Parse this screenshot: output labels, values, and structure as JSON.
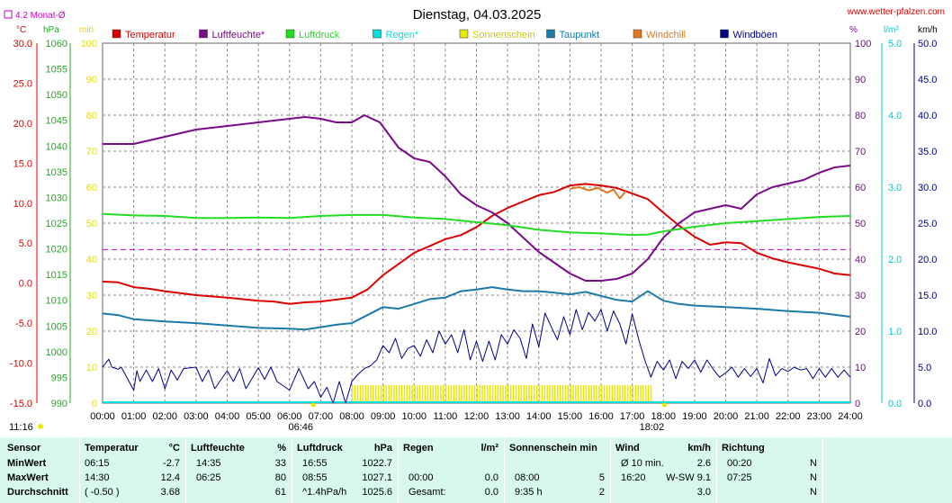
{
  "header": {
    "title": "Dienstag, 04.03.2025",
    "website": "www.wetter-pfalzen.com",
    "avg_label": "4.2 Monat-Ø"
  },
  "legend": [
    {
      "name": "Temperatur",
      "color": "#dd0000"
    },
    {
      "name": "Luftfeuchte*",
      "color": "#7a0a8a"
    },
    {
      "name": "Luftdruck",
      "color": "#22dd22"
    },
    {
      "name": "Regen*",
      "color": "#00e0e0"
    },
    {
      "name": "Sonnenschein",
      "color": "#e8e800"
    },
    {
      "name": "Taupunkt",
      "color": "#1a7aaa"
    },
    {
      "name": "Windchill",
      "color": "#e07a20"
    },
    {
      "name": "Windböen",
      "color": "#000088"
    }
  ],
  "axes": {
    "temp": {
      "unit": "°C",
      "ticks": [
        "30.0",
        "25.0",
        "20.0",
        "15.0",
        "10.0",
        "5.0",
        "0.0",
        "-5.0",
        "-10.0",
        "-15.0"
      ],
      "color": "#dd0000"
    },
    "pressure": {
      "unit": "hPa",
      "ticks": [
        "1060",
        "1055",
        "1050",
        "1045",
        "1040",
        "1035",
        "1030",
        "1025",
        "1020",
        "1015",
        "1010",
        "1005",
        "1000",
        "995",
        "990"
      ],
      "color": "#22aa22"
    },
    "sun": {
      "unit": "min",
      "ticks": [
        "100",
        "90",
        "80",
        "70",
        "60",
        "50",
        "40",
        "30",
        "20",
        "10",
        "0"
      ],
      "color": "#e8d800"
    },
    "humidity": {
      "unit": "%",
      "ticks": [
        "100",
        "90",
        "80",
        "70",
        "60",
        "50",
        "40",
        "30",
        "20",
        "10",
        "0"
      ],
      "color": "#7a0a8a"
    },
    "rain": {
      "unit": "l/m²",
      "ticks": [
        "5.0",
        "4.0",
        "3.0",
        "2.0",
        "1.0",
        "0.0"
      ],
      "color": "#00cccc"
    },
    "wind": {
      "unit": "km/h",
      "ticks": [
        "50.0",
        "45.0",
        "40.0",
        "35.0",
        "30.0",
        "25.0",
        "20.0",
        "15.0",
        "10.0",
        "5.0",
        "0.0"
      ],
      "color": "#000088"
    },
    "time_ticks": [
      "00:00",
      "01:00",
      "02:00",
      "03:00",
      "04:00",
      "05:00",
      "06:00",
      "07:00",
      "08:00",
      "09:00",
      "10:00",
      "11:00",
      "12:00",
      "13:00",
      "14:00",
      "15:00",
      "16:00",
      "17:00",
      "18:00",
      "19:00",
      "20:00",
      "21:00",
      "22:00",
      "23:00",
      "24:00"
    ]
  },
  "sun_events": {
    "sunrise": "06:46",
    "sunset": "18:02",
    "daylength": "11:16"
  },
  "chart_data": {
    "type": "line",
    "x_label": "",
    "x_range": [
      "00:00",
      "24:00"
    ],
    "temp_avg_line": 4.2,
    "series": [
      {
        "name": "Temperatur",
        "axis": "°C",
        "color": "#dd0000",
        "x": [
          0,
          0.5,
          1,
          1.5,
          2,
          3,
          4,
          5,
          5.5,
          6,
          6.5,
          7,
          8,
          8.5,
          9,
          10,
          11,
          11.5,
          12,
          12.5,
          13,
          13.5,
          14,
          14.5,
          15,
          15.5,
          16,
          16.5,
          17,
          17.5,
          18,
          18.5,
          19,
          19.5,
          20,
          20.5,
          21,
          21.5,
          22,
          23,
          23.5,
          24
        ],
        "y": [
          0.2,
          0.1,
          -0.5,
          -0.7,
          -1.0,
          -1.5,
          -1.8,
          -2.2,
          -2.3,
          -2.6,
          -2.4,
          -2.3,
          -1.8,
          -0.8,
          1.0,
          3.8,
          5.5,
          6.0,
          7.0,
          8.4,
          9.4,
          10.2,
          11.0,
          11.4,
          12.2,
          12.4,
          12.2,
          11.9,
          11.2,
          10.5,
          8.8,
          7.2,
          5.8,
          4.8,
          5.1,
          5.0,
          3.8,
          3.1,
          2.6,
          1.8,
          1.2,
          1.0
        ]
      },
      {
        "name": "Windchill",
        "axis": "°C",
        "color": "#e07a20",
        "x": [
          15.0,
          15.3,
          15.6,
          15.9,
          16.2,
          16.4,
          16.6,
          16.8
        ],
        "y": [
          11.8,
          12.0,
          11.6,
          11.9,
          11.3,
          11.7,
          10.6,
          11.5
        ]
      },
      {
        "name": "Taupunkt",
        "axis": "°C",
        "color": "#1a7aaa",
        "x": [
          0,
          0.5,
          1,
          2,
          3,
          4,
          5,
          6,
          6.5,
          7,
          7.5,
          8,
          8.5,
          9,
          9.5,
          10,
          10.5,
          11,
          11.5,
          12,
          12.5,
          13,
          13.5,
          14,
          14.5,
          15,
          15.5,
          16,
          16.5,
          17,
          17.5,
          18,
          18.5,
          19,
          20,
          21,
          22,
          23,
          24
        ],
        "y": [
          -3.8,
          -4.0,
          -4.5,
          -4.8,
          -5.0,
          -5.3,
          -5.6,
          -5.7,
          -5.8,
          -5.5,
          -5.2,
          -5.0,
          -4.0,
          -3.0,
          -3.2,
          -2.6,
          -2.0,
          -1.8,
          -1.0,
          -0.8,
          -0.5,
          -0.8,
          -1.0,
          -1.0,
          -1.2,
          -1.4,
          -1.1,
          -1.6,
          -2.1,
          -2.3,
          -1.0,
          -2.2,
          -2.6,
          -2.8,
          -3.0,
          -3.2,
          -3.5,
          -3.7,
          -4.2
        ]
      },
      {
        "name": "Luftfeuchte*",
        "axis": "%",
        "color": "#7a0a8a",
        "x": [
          0,
          1,
          2,
          3,
          4,
          5,
          5.5,
          6,
          6.5,
          7,
          7.5,
          8,
          8.4,
          8.9,
          9.5,
          10,
          10.5,
          11,
          11.5,
          12,
          12.5,
          13,
          13.5,
          14,
          14.5,
          15,
          15.5,
          16,
          16.5,
          17,
          17.5,
          18,
          18.5,
          19,
          19.5,
          20,
          20.5,
          21,
          21.5,
          22,
          22.5,
          23,
          23.5,
          24
        ],
        "y": [
          72,
          72,
          74,
          76,
          77,
          78,
          78.5,
          79,
          79.5,
          79,
          78,
          78,
          80,
          78,
          71,
          68,
          67,
          63,
          58,
          55,
          53,
          50,
          46,
          42,
          39,
          36,
          34,
          34,
          34.5,
          36,
          40,
          46,
          50,
          53,
          54,
          55,
          54,
          58,
          60,
          61,
          62,
          64,
          65.5,
          66
        ]
      },
      {
        "name": "Luftdruck",
        "axis": "hPa",
        "color": "#22dd22",
        "x": [
          0,
          1,
          2,
          3,
          4,
          5,
          6,
          7,
          8,
          9,
          10,
          11,
          12,
          13,
          14,
          15,
          16,
          17,
          17.5,
          18,
          19,
          20,
          21,
          22,
          23,
          24
        ],
        "y": [
          1026.8,
          1026.5,
          1026.4,
          1026.0,
          1026.0,
          1026.1,
          1026.0,
          1026.4,
          1026.6,
          1026.6,
          1026.1,
          1025.8,
          1025.2,
          1024.6,
          1023.7,
          1023.2,
          1023.0,
          1022.7,
          1022.8,
          1023.4,
          1024.3,
          1025.0,
          1025.4,
          1025.8,
          1026.2,
          1026.4
        ]
      },
      {
        "name": "Windböen",
        "axis": "km/h",
        "color": "#000088",
        "x": [
          0,
          0.2,
          0.3,
          0.5,
          0.6,
          1,
          1.1,
          1.2,
          1.4,
          1.6,
          1.8,
          2,
          2.2,
          2.4,
          2.6,
          3,
          3.2,
          3.4,
          3.6,
          4,
          4.2,
          4.4,
          4.6,
          5,
          5.2,
          5.4,
          5.6,
          6,
          6.3,
          6.6,
          6.8,
          7,
          7.2,
          7.4,
          7.6,
          7.8,
          8,
          8.2,
          8.4,
          8.6,
          8.8,
          9,
          9.2,
          9.4,
          9.6,
          9.8,
          10,
          10.2,
          10.4,
          10.6,
          10.8,
          11,
          11.2,
          11.4,
          11.6,
          11.8,
          12,
          12.2,
          12.4,
          12.6,
          12.8,
          13,
          13.2,
          13.4,
          13.6,
          13.8,
          14,
          14.2,
          14.4,
          14.6,
          14.8,
          15,
          15.2,
          15.4,
          15.6,
          15.8,
          16,
          16.2,
          16.4,
          16.6,
          16.8,
          17,
          17.2,
          17.4,
          17.6,
          17.8,
          18,
          18.2,
          18.4,
          18.6,
          18.8,
          19,
          19.2,
          19.4,
          19.6,
          19.8,
          20,
          20.2,
          20.4,
          20.6,
          20.8,
          21,
          21.2,
          21.4,
          21.6,
          21.8,
          22,
          22.2,
          22.4,
          22.6,
          22.8,
          23,
          23.2,
          23.4,
          23.6,
          23.8,
          24
        ],
        "y": [
          5.0,
          6.1,
          5.0,
          4.7,
          5.0,
          1.8,
          4.5,
          3.0,
          4.6,
          3.0,
          4.8,
          2.0,
          4.6,
          3.2,
          4.8,
          5.0,
          3.0,
          4.6,
          2.0,
          4.5,
          3.0,
          4.8,
          2.0,
          4.9,
          3.3,
          5.0,
          3.0,
          1.8,
          4.8,
          2.0,
          3.0,
          0.8,
          2.2,
          0.0,
          3.0,
          0.0,
          3.0,
          4.0,
          4.8,
          5.2,
          6.0,
          8.0,
          7.0,
          9.0,
          6.2,
          7.6,
          8.0,
          6.5,
          8.8,
          7.0,
          10.0,
          8.2,
          9.5,
          7.0,
          10.2,
          6.0,
          8.6,
          5.8,
          8.6,
          6.0,
          9.5,
          8.2,
          10.2,
          9.0,
          6.2,
          11.0,
          7.8,
          12.5,
          10.6,
          8.8,
          12.0,
          9.5,
          13.0,
          10.2,
          12.6,
          11.4,
          13.0,
          10.0,
          12.8,
          11.0,
          8.2,
          12.4,
          9.0,
          6.0,
          3.6,
          5.8,
          4.6,
          6.0,
          3.4,
          5.8,
          4.8,
          6.0,
          4.3,
          6.0,
          4.7,
          3.6,
          4.2,
          5.0,
          3.6,
          4.8,
          3.7,
          4.8,
          2.8,
          6.2,
          3.8,
          4.8,
          4.4,
          5.0,
          4.6,
          4.8,
          3.4,
          4.8,
          3.6,
          4.8,
          3.6,
          4.6,
          3.6
        ]
      },
      {
        "name": "Sonnenschein",
        "axis": "min",
        "color": "#e8e800",
        "x_range": [
          8.0,
          17.6
        ],
        "value": 5
      }
    ]
  },
  "stats": {
    "headers": {
      "sensor": "Sensor",
      "temp": "Temperatur",
      "temp_unit": "°C",
      "hum": "Luftfeuchte",
      "hum_unit": "%",
      "pres": "Luftdruck",
      "pres_unit": "hPa",
      "rain": "Regen",
      "rain_unit": "l/m²",
      "sun": "Sonnenschein min",
      "wind": "Wind",
      "wind_unit": "km/h",
      "dir": "Richtung"
    },
    "rows": [
      {
        "label": "MinWert",
        "temp_time": "06:15",
        "temp_val": "-2.7",
        "hum_time": "14:35",
        "hum_val": "33",
        "pres_time": "16:55",
        "pres_val": "1022.7",
        "rain_time": "",
        "rain_val": "",
        "sun_time": "",
        "sun_val": "",
        "wind_time": "Ø 10 min.",
        "wind_val": "2.6",
        "dir_time": "00:20",
        "dir_val": "N"
      },
      {
        "label": "MaxWert",
        "temp_time": "14:30",
        "temp_val": "12.4",
        "hum_time": "06:25",
        "hum_val": "80",
        "pres_time": "08:55",
        "pres_val": "1027.1",
        "rain_time": "00:00",
        "rain_val": "0.0",
        "sun_time": "08:00",
        "sun_val": "5",
        "wind_time": "16:20",
        "wind_val": "W-SW 9.1",
        "dir_time": "07:25",
        "dir_val": "N"
      },
      {
        "label": "Durchschnitt",
        "temp_time": "( -0.50 )",
        "temp_val": "3.68",
        "hum_time": "",
        "hum_val": "61",
        "pres_time": "^1.4hPa/h",
        "pres_val": "1025.6",
        "rain_time": "Gesamt:",
        "rain_val": "0.0",
        "sun_time": "9:35 h",
        "sun_val": "2",
        "wind_time": "",
        "wind_val": "3.0",
        "dir_time": "",
        "dir_val": "N"
      }
    ]
  }
}
